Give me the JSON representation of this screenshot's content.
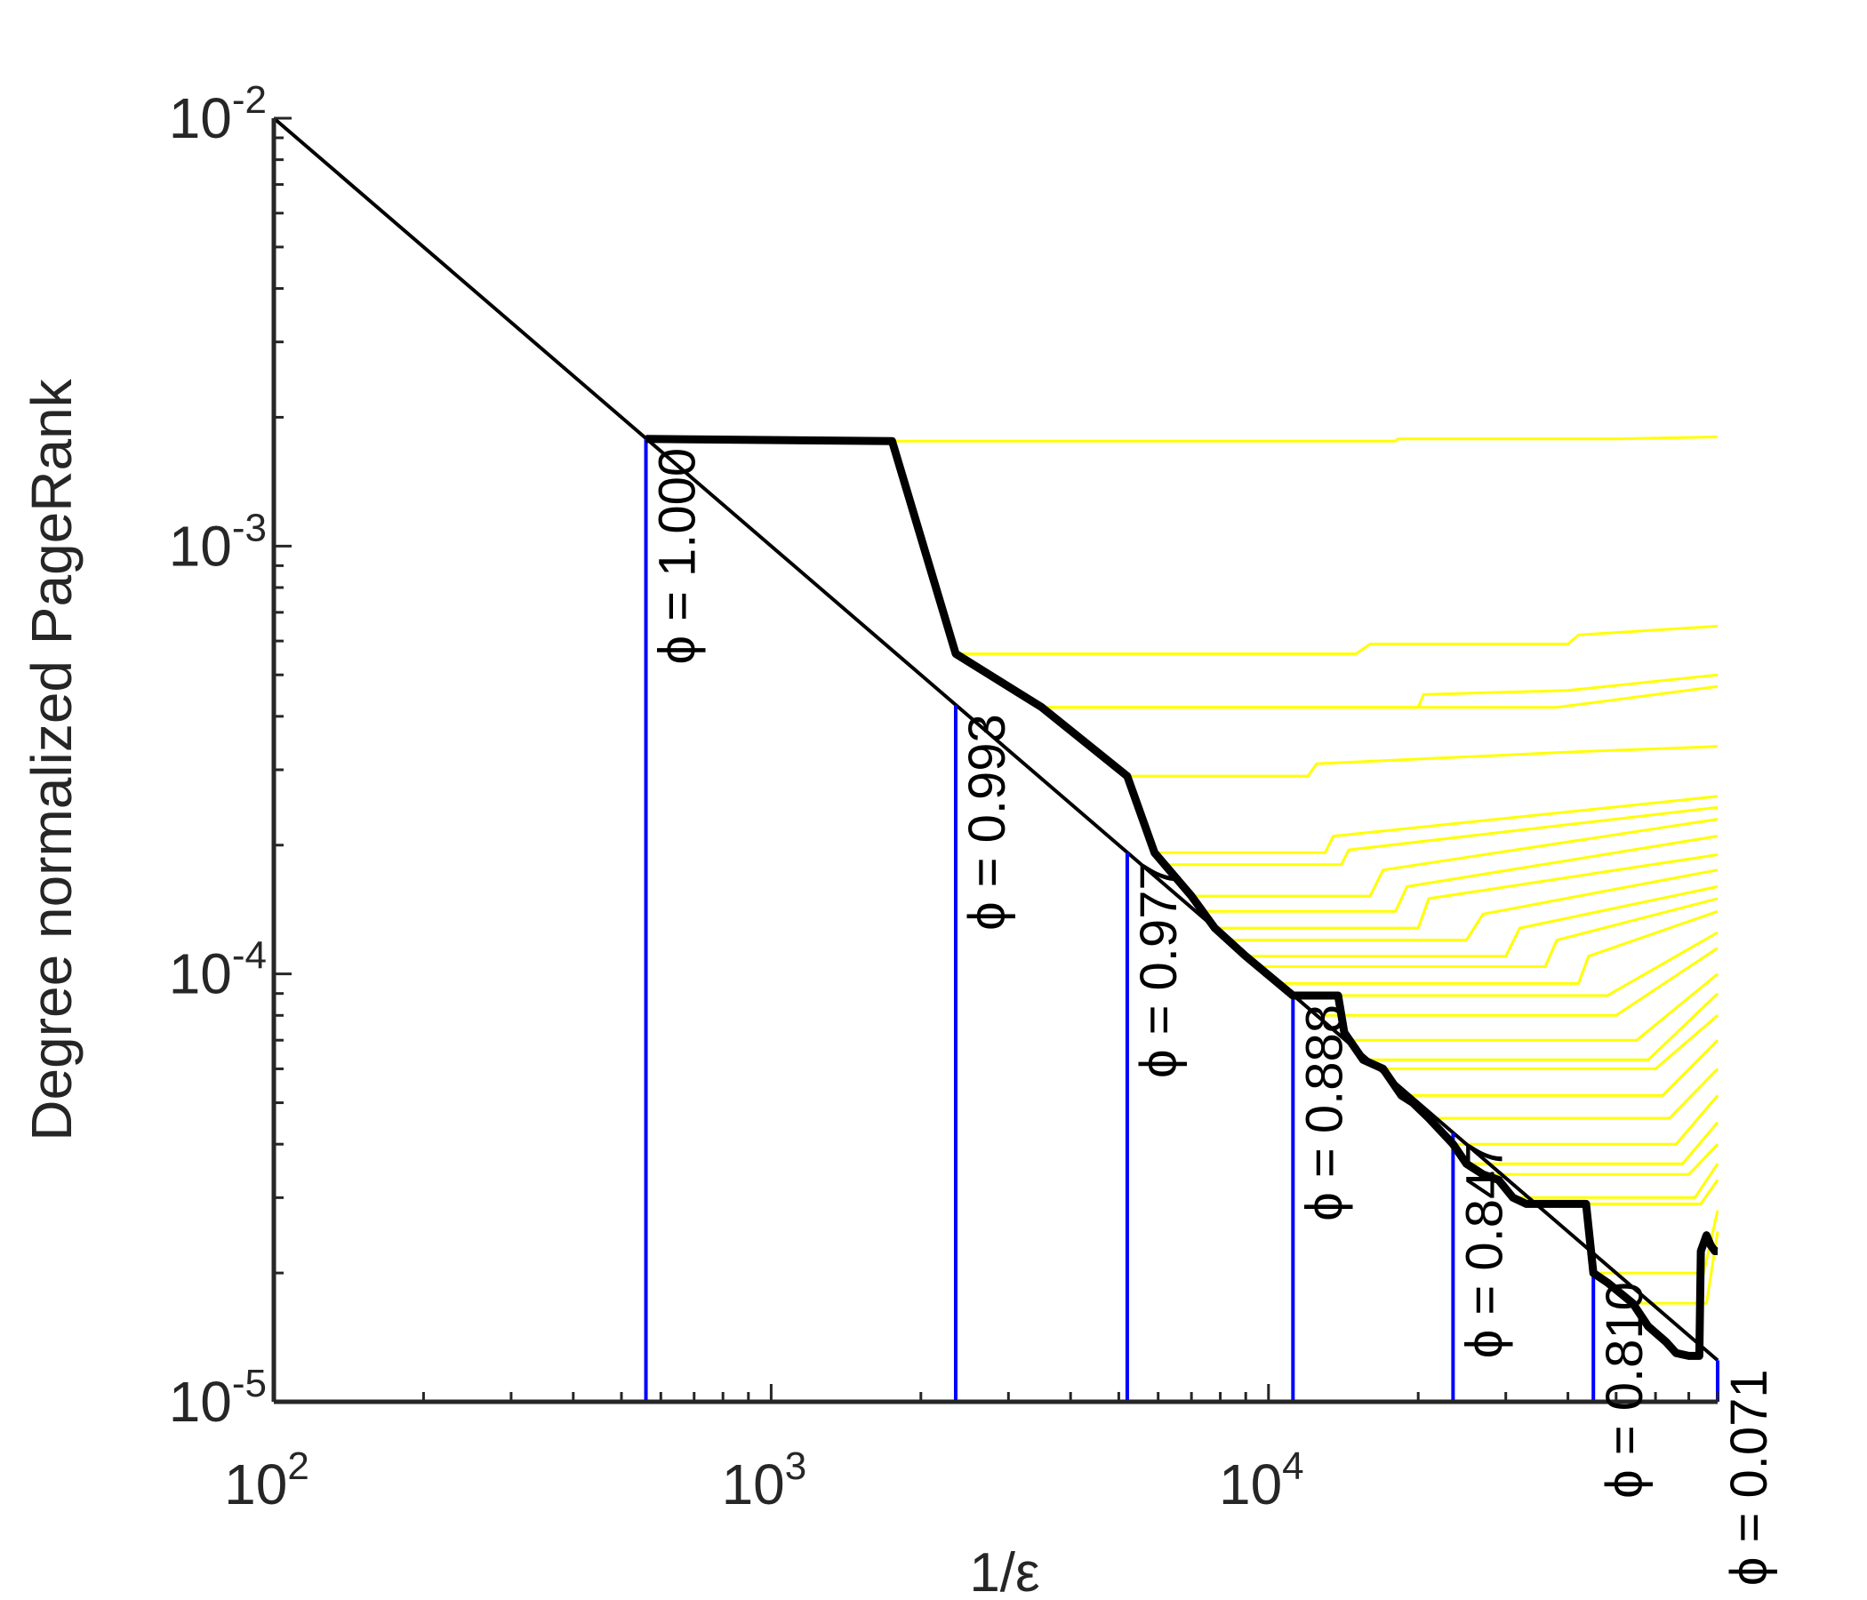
{
  "chart_data": {
    "type": "line",
    "xlabel": "1/ε",
    "ylabel": "Degree normalized PageRank",
    "x_scale": "log",
    "y_scale": "log",
    "xlim": [
      100,
      80000
    ],
    "ylim": [
      1e-05,
      0.01
    ],
    "x_ticks": [
      {
        "value": 100,
        "base": "10",
        "exp": "2"
      },
      {
        "value": 1000,
        "base": "10",
        "exp": "3"
      },
      {
        "value": 10000,
        "base": "10",
        "exp": "4"
      }
    ],
    "y_ticks": [
      {
        "value": 1e-05,
        "base": "10",
        "exp": "-5"
      },
      {
        "value": 0.0001,
        "base": "10",
        "exp": "-4"
      },
      {
        "value": 0.001,
        "base": "10",
        "exp": "-3"
      },
      {
        "value": 0.01,
        "base": "10",
        "exp": "-2"
      }
    ],
    "colors": {
      "reference": "#000000",
      "envelope": "#000000",
      "markers": "#0000ff",
      "yellow": "#ffff00",
      "axis": "#262626"
    },
    "reference_line": {
      "x": [
        100,
        80000
      ],
      "y": [
        0.01,
        1.25e-05
      ]
    },
    "envelope": {
      "x": [
        560,
        1750,
        2350,
        3500,
        5200,
        5900,
        7000,
        7800,
        9000,
        11200,
        12800,
        13800,
        14200,
        15500,
        17000,
        18500,
        19500,
        21000,
        23500,
        25000,
        27000,
        29000,
        31000,
        33000,
        38000,
        43500,
        45000,
        48000,
        54000,
        58000,
        63000,
        66000,
        70000,
        73500,
        74000,
        76000,
        77500,
        79000,
        80000
      ],
      "y": [
        0.00178,
        0.00176,
        0.00056,
        0.00042,
        0.00029,
        0.000192,
        0.000152,
        0.000128,
        0.00011,
        8.9e-05,
        8.9e-05,
        8.9e-05,
        7.3e-05,
        6.3e-05,
        6e-05,
        5.2e-05,
        5e-05,
        4.6e-05,
        4e-05,
        3.6e-05,
        3.4e-05,
        3.3e-05,
        3e-05,
        2.9e-05,
        2.9e-05,
        2.9e-05,
        2e-05,
        1.9e-05,
        1.7e-05,
        1.5e-05,
        1.38e-05,
        1.3e-05,
        1.28e-05,
        1.28e-05,
        2.25e-05,
        2.45e-05,
        2.32e-05,
        2.25e-05,
        2.25e-05
      ]
    },
    "yellow_series": [
      {
        "points": [
          [
            1750,
            0.00176
          ],
          [
            18000,
            0.00176
          ],
          [
            18200,
            0.00178
          ],
          [
            50000,
            0.00178
          ],
          [
            80000,
            0.0018
          ]
        ]
      },
      {
        "points": [
          [
            2350,
            0.00056
          ],
          [
            15000,
            0.00056
          ],
          [
            16000,
            0.00059
          ],
          [
            40000,
            0.00059
          ],
          [
            42000,
            0.00062
          ],
          [
            80000,
            0.00065
          ]
        ]
      },
      {
        "points": [
          [
            3500,
            0.00042
          ],
          [
            20000,
            0.00042
          ],
          [
            20500,
            0.00045
          ],
          [
            40000,
            0.00046
          ],
          [
            80000,
            0.0005
          ]
        ]
      },
      {
        "points": [
          [
            3500,
            0.00042
          ],
          [
            38000,
            0.00042
          ],
          [
            80000,
            0.00047
          ]
        ]
      },
      {
        "points": [
          [
            5200,
            0.00029
          ],
          [
            12000,
            0.00029
          ],
          [
            12500,
            0.00031
          ],
          [
            40000,
            0.00033
          ],
          [
            80000,
            0.00034
          ]
        ]
      },
      {
        "points": [
          [
            5900,
            0.000192
          ],
          [
            13000,
            0.000192
          ],
          [
            13500,
            0.00021
          ],
          [
            80000,
            0.00026
          ]
        ]
      },
      {
        "points": [
          [
            6300,
            0.00018
          ],
          [
            14000,
            0.00018
          ],
          [
            14500,
            0.000195
          ],
          [
            80000,
            0.000245
          ]
        ]
      },
      {
        "points": [
          [
            7000,
            0.000152
          ],
          [
            16000,
            0.000152
          ],
          [
            17000,
            0.000175
          ],
          [
            80000,
            0.00023
          ]
        ]
      },
      {
        "points": [
          [
            7200,
            0.00014
          ],
          [
            18000,
            0.00014
          ],
          [
            19000,
            0.00016
          ],
          [
            80000,
            0.00021
          ]
        ]
      },
      {
        "points": [
          [
            7800,
            0.000128
          ],
          [
            20000,
            0.000128
          ],
          [
            21000,
            0.00015
          ],
          [
            80000,
            0.00019
          ]
        ]
      },
      {
        "points": [
          [
            8200,
            0.00012
          ],
          [
            25000,
            0.00012
          ],
          [
            27000,
            0.000138
          ],
          [
            80000,
            0.000175
          ]
        ]
      },
      {
        "points": [
          [
            9000,
            0.00011
          ],
          [
            30000,
            0.00011
          ],
          [
            32000,
            0.000128
          ],
          [
            80000,
            0.00016
          ]
        ]
      },
      {
        "points": [
          [
            9500,
            0.000104
          ],
          [
            36000,
            0.000104
          ],
          [
            38000,
            0.00012
          ],
          [
            80000,
            0.00015
          ]
        ]
      },
      {
        "points": [
          [
            10500,
            9.5e-05
          ],
          [
            42000,
            9.5e-05
          ],
          [
            44000,
            0.00011
          ],
          [
            80000,
            0.00014
          ]
        ]
      },
      {
        "points": [
          [
            11200,
            8.9e-05
          ],
          [
            48000,
            8.9e-05
          ],
          [
            80000,
            0.000125
          ]
        ]
      },
      {
        "points": [
          [
            13000,
            8e-05
          ],
          [
            50000,
            8e-05
          ],
          [
            80000,
            0.000115
          ]
        ]
      },
      {
        "points": [
          [
            14500,
            7e-05
          ],
          [
            55000,
            7e-05
          ],
          [
            80000,
            0.0001
          ]
        ]
      },
      {
        "points": [
          [
            15500,
            6.3e-05
          ],
          [
            58000,
            6.3e-05
          ],
          [
            80000,
            9e-05
          ]
        ]
      },
      {
        "points": [
          [
            17000,
            6e-05
          ],
          [
            60000,
            6e-05
          ],
          [
            80000,
            8e-05
          ]
        ]
      },
      {
        "points": [
          [
            18500,
            5.2e-05
          ],
          [
            62000,
            5.2e-05
          ],
          [
            80000,
            7e-05
          ]
        ]
      },
      {
        "points": [
          [
            21000,
            4.6e-05
          ],
          [
            64000,
            4.6e-05
          ],
          [
            80000,
            6e-05
          ]
        ]
      },
      {
        "points": [
          [
            23500,
            4e-05
          ],
          [
            66000,
            4e-05
          ],
          [
            80000,
            5.2e-05
          ]
        ]
      },
      {
        "points": [
          [
            25000,
            3.6e-05
          ],
          [
            68000,
            3.6e-05
          ],
          [
            80000,
            4.5e-05
          ]
        ]
      },
      {
        "points": [
          [
            27000,
            3.4e-05
          ],
          [
            70000,
            3.4e-05
          ],
          [
            80000,
            4e-05
          ]
        ]
      },
      {
        "points": [
          [
            31000,
            3e-05
          ],
          [
            72000,
            3e-05
          ],
          [
            80000,
            3.6e-05
          ]
        ]
      },
      {
        "points": [
          [
            38000,
            2.9e-05
          ],
          [
            74000,
            2.9e-05
          ],
          [
            80000,
            3.3e-05
          ]
        ]
      },
      {
        "points": [
          [
            45000,
            2e-05
          ],
          [
            75000,
            2e-05
          ],
          [
            80000,
            2.8e-05
          ]
        ]
      },
      {
        "points": [
          [
            54000,
            1.7e-05
          ],
          [
            76000,
            1.7e-05
          ],
          [
            80000,
            2.5e-05
          ]
        ]
      }
    ],
    "markers": [
      {
        "x": 560,
        "y": 0.00178,
        "label": "ϕ = 1.000"
      },
      {
        "x": 2350,
        "y": 0.000425,
        "label": "ϕ = 0.993"
      },
      {
        "x": 5200,
        "y": 0.000192,
        "label": "ϕ = 0.977"
      },
      {
        "x": 11200,
        "y": 8.9e-05,
        "label": "ϕ = 0.888"
      },
      {
        "x": 23500,
        "y": 4.25e-05,
        "label": "ϕ = 0.847"
      },
      {
        "x": 45000,
        "y": 2e-05,
        "label": "ϕ = 0.810"
      },
      {
        "x": 80000,
        "y": 1.25e-05,
        "label": "ϕ = 0.071"
      }
    ]
  }
}
